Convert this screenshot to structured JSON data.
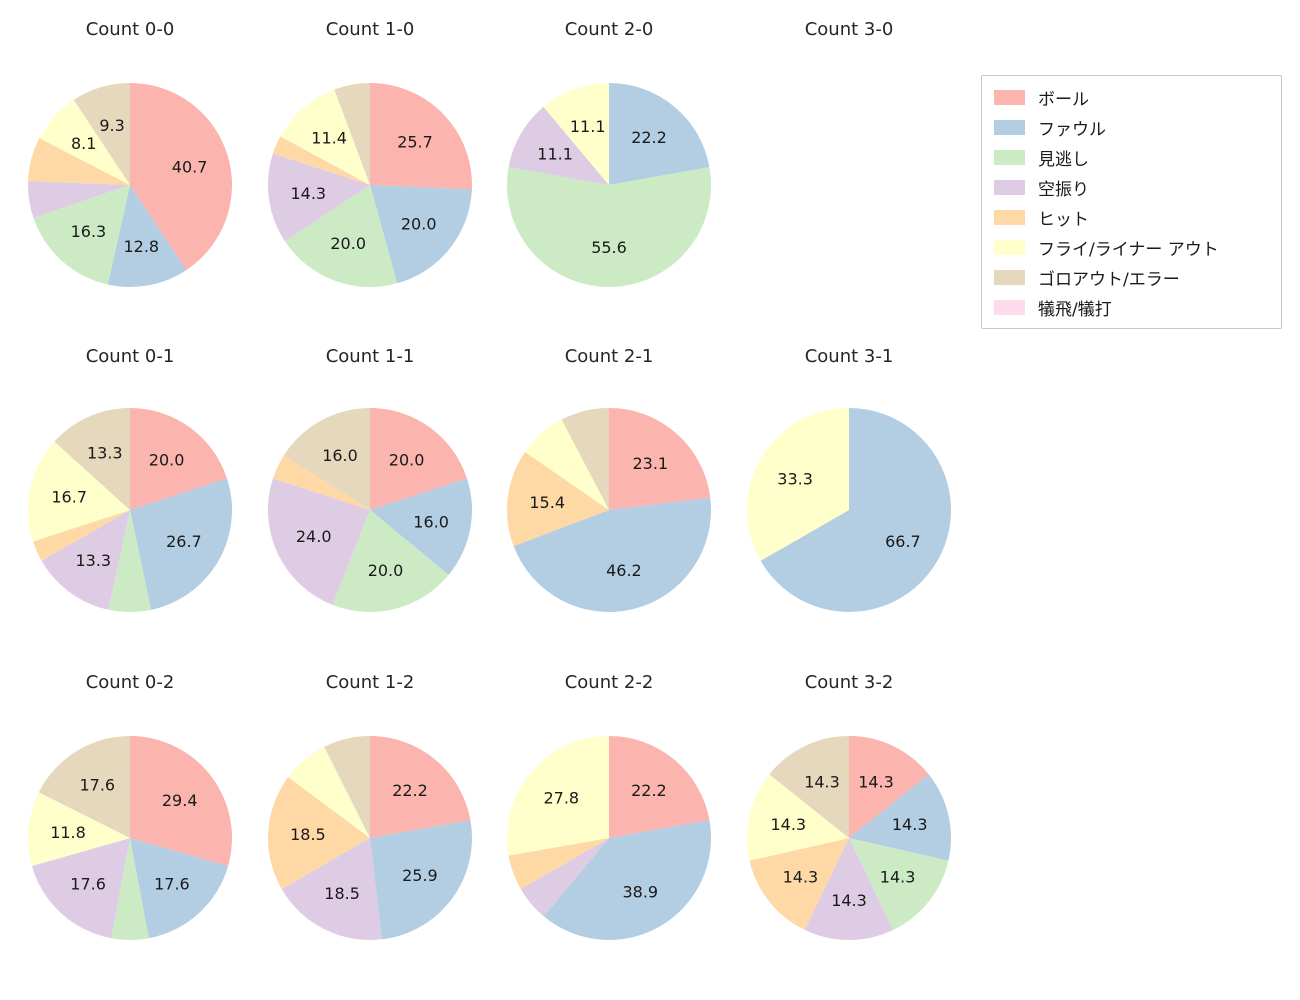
{
  "figure": {
    "background": "#ffffff",
    "text_color": "#262626",
    "legend": {
      "position": "top-right",
      "border_color": "#c8c8c8"
    }
  },
  "categories": [
    {
      "key": "ball",
      "label": "ボール",
      "color": "#fbb4ae"
    },
    {
      "key": "foul",
      "label": "ファウル",
      "color": "#b3cde3"
    },
    {
      "key": "called-strike",
      "label": "見逃し",
      "color": "#ccebc5"
    },
    {
      "key": "swinging-strike",
      "label": "空振り",
      "color": "#decbe4"
    },
    {
      "key": "hit",
      "label": "ヒット",
      "color": "#fed9a6"
    },
    {
      "key": "fly-liner-out",
      "label": "フライ/ライナー アウト",
      "color": "#ffffcc"
    },
    {
      "key": "groundout-error",
      "label": "ゴロアウト/エラー",
      "color": "#e5d8bd"
    },
    {
      "key": "sacrifice",
      "label": "犠飛/犠打",
      "color": "#fddaec"
    }
  ],
  "chart_data": [
    {
      "type": "pie",
      "title": "Count 0-0",
      "start_angle": 90,
      "clockwise": true,
      "slices": [
        {
          "category": "ball",
          "value": 40.7,
          "display": "40.7"
        },
        {
          "category": "foul",
          "value": 12.8,
          "display": "12.8"
        },
        {
          "category": "called-strike",
          "value": 16.3,
          "display": "16.3"
        },
        {
          "category": "swinging-strike",
          "value": 5.8,
          "display": ""
        },
        {
          "category": "hit",
          "value": 7.0,
          "display": ""
        },
        {
          "category": "fly-liner-out",
          "value": 8.1,
          "display": "8.1"
        },
        {
          "category": "groundout-error",
          "value": 9.3,
          "display": "9.3"
        }
      ]
    },
    {
      "type": "pie",
      "title": "Count 1-0",
      "start_angle": 90,
      "clockwise": true,
      "slices": [
        {
          "category": "ball",
          "value": 25.7,
          "display": "25.7"
        },
        {
          "category": "foul",
          "value": 20.0,
          "display": "20.0"
        },
        {
          "category": "called-strike",
          "value": 20.0,
          "display": "20.0"
        },
        {
          "category": "swinging-strike",
          "value": 14.3,
          "display": "14.3"
        },
        {
          "category": "hit",
          "value": 2.9,
          "display": ""
        },
        {
          "category": "fly-liner-out",
          "value": 11.4,
          "display": "11.4"
        },
        {
          "category": "groundout-error",
          "value": 5.7,
          "display": ""
        }
      ]
    },
    {
      "type": "pie",
      "title": "Count 2-0",
      "start_angle": 90,
      "clockwise": true,
      "slices": [
        {
          "category": "foul",
          "value": 22.2,
          "display": "22.2"
        },
        {
          "category": "called-strike",
          "value": 55.6,
          "display": "55.6"
        },
        {
          "category": "swinging-strike",
          "value": 11.1,
          "display": "11.1"
        },
        {
          "category": "fly-liner-out",
          "value": 11.1,
          "display": "11.1"
        }
      ]
    },
    {
      "type": "pie",
      "title": "Count 3-0",
      "start_angle": 90,
      "clockwise": true,
      "slices": []
    },
    {
      "type": "pie",
      "title": "Count 0-1",
      "start_angle": 90,
      "clockwise": true,
      "slices": [
        {
          "category": "ball",
          "value": 20.0,
          "display": "20.0"
        },
        {
          "category": "foul",
          "value": 26.7,
          "display": "26.7"
        },
        {
          "category": "called-strike",
          "value": 6.7,
          "display": ""
        },
        {
          "category": "swinging-strike",
          "value": 13.3,
          "display": "13.3"
        },
        {
          "category": "hit",
          "value": 3.3,
          "display": ""
        },
        {
          "category": "fly-liner-out",
          "value": 16.7,
          "display": "16.7"
        },
        {
          "category": "groundout-error",
          "value": 13.3,
          "display": "13.3"
        }
      ]
    },
    {
      "type": "pie",
      "title": "Count 1-1",
      "start_angle": 90,
      "clockwise": true,
      "slices": [
        {
          "category": "ball",
          "value": 20.0,
          "display": "20.0"
        },
        {
          "category": "foul",
          "value": 16.0,
          "display": "16.0"
        },
        {
          "category": "called-strike",
          "value": 20.0,
          "display": "20.0"
        },
        {
          "category": "swinging-strike",
          "value": 24.0,
          "display": "24.0"
        },
        {
          "category": "hit",
          "value": 4.0,
          "display": ""
        },
        {
          "category": "groundout-error",
          "value": 16.0,
          "display": "16.0"
        }
      ]
    },
    {
      "type": "pie",
      "title": "Count 2-1",
      "start_angle": 90,
      "clockwise": true,
      "slices": [
        {
          "category": "ball",
          "value": 23.1,
          "display": "23.1"
        },
        {
          "category": "foul",
          "value": 46.2,
          "display": "46.2"
        },
        {
          "category": "hit",
          "value": 15.4,
          "display": "15.4"
        },
        {
          "category": "fly-liner-out",
          "value": 7.7,
          "display": ""
        },
        {
          "category": "groundout-error",
          "value": 7.7,
          "display": ""
        }
      ]
    },
    {
      "type": "pie",
      "title": "Count 3-1",
      "start_angle": 90,
      "clockwise": true,
      "slices": [
        {
          "category": "foul",
          "value": 66.7,
          "display": "66.7"
        },
        {
          "category": "fly-liner-out",
          "value": 33.3,
          "display": "33.3"
        }
      ]
    },
    {
      "type": "pie",
      "title": "Count 0-2",
      "start_angle": 90,
      "clockwise": true,
      "slices": [
        {
          "category": "ball",
          "value": 29.4,
          "display": "29.4"
        },
        {
          "category": "foul",
          "value": 17.6,
          "display": "17.6"
        },
        {
          "category": "called-strike",
          "value": 5.9,
          "display": ""
        },
        {
          "category": "swinging-strike",
          "value": 17.6,
          "display": "17.6"
        },
        {
          "category": "fly-liner-out",
          "value": 11.8,
          "display": "11.8"
        },
        {
          "category": "groundout-error",
          "value": 17.6,
          "display": "17.6"
        }
      ]
    },
    {
      "type": "pie",
      "title": "Count 1-2",
      "start_angle": 90,
      "clockwise": true,
      "slices": [
        {
          "category": "ball",
          "value": 22.2,
          "display": "22.2"
        },
        {
          "category": "foul",
          "value": 25.9,
          "display": "25.9"
        },
        {
          "category": "swinging-strike",
          "value": 18.5,
          "display": "18.5"
        },
        {
          "category": "hit",
          "value": 18.5,
          "display": "18.5"
        },
        {
          "category": "fly-liner-out",
          "value": 7.4,
          "display": ""
        },
        {
          "category": "groundout-error",
          "value": 7.4,
          "display": ""
        }
      ]
    },
    {
      "type": "pie",
      "title": "Count 2-2",
      "start_angle": 90,
      "clockwise": true,
      "slices": [
        {
          "category": "ball",
          "value": 22.2,
          "display": "22.2"
        },
        {
          "category": "foul",
          "value": 38.9,
          "display": "38.9"
        },
        {
          "category": "swinging-strike",
          "value": 5.6,
          "display": ""
        },
        {
          "category": "hit",
          "value": 5.6,
          "display": ""
        },
        {
          "category": "fly-liner-out",
          "value": 27.8,
          "display": "27.8"
        }
      ]
    },
    {
      "type": "pie",
      "title": "Count 3-2",
      "start_angle": 90,
      "clockwise": true,
      "slices": [
        {
          "category": "ball",
          "value": 14.3,
          "display": "14.3"
        },
        {
          "category": "foul",
          "value": 14.3,
          "display": "14.3"
        },
        {
          "category": "called-strike",
          "value": 14.3,
          "display": "14.3"
        },
        {
          "category": "swinging-strike",
          "value": 14.3,
          "display": "14.3"
        },
        {
          "category": "hit",
          "value": 14.3,
          "display": "14.3"
        },
        {
          "category": "fly-liner-out",
          "value": 14.3,
          "display": "14.3"
        },
        {
          "category": "groundout-error",
          "value": 14.3,
          "display": "14.3"
        }
      ]
    }
  ]
}
